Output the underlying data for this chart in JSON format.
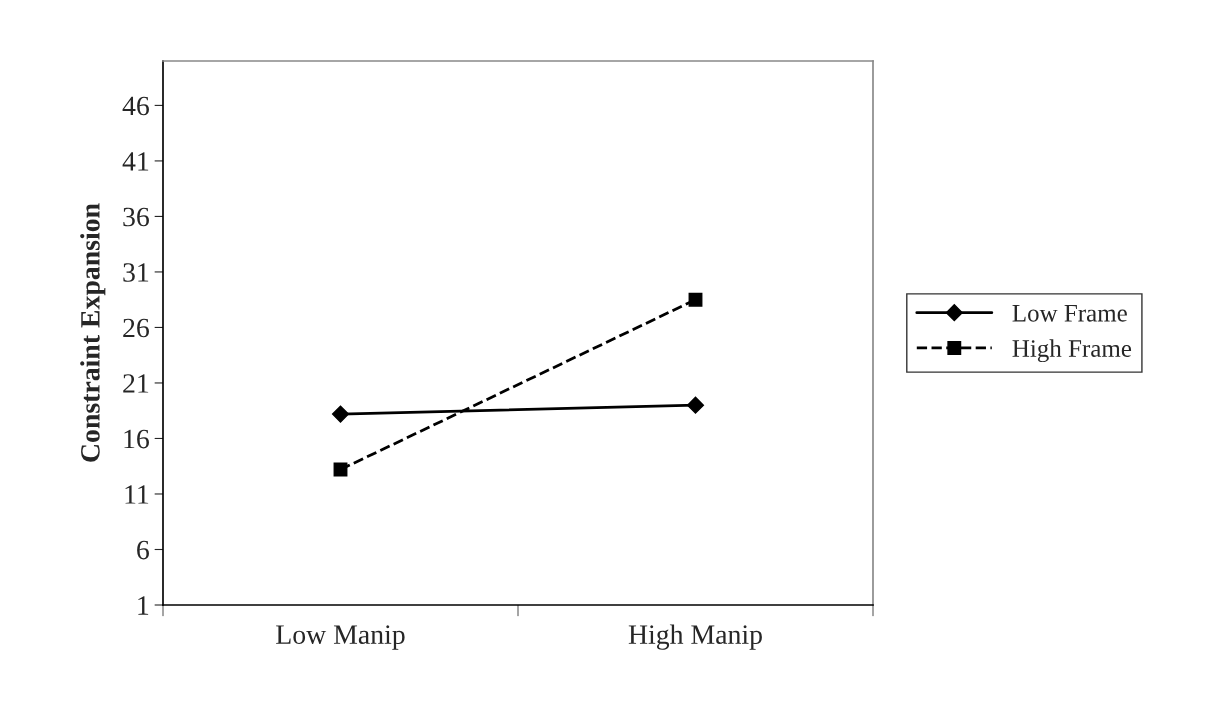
{
  "chart_data": {
    "type": "line",
    "ylabel": "Constraint Expansion",
    "categories": [
      "Low Manip",
      "High Manip"
    ],
    "series": [
      {
        "name": "Low Frame",
        "color": "#000000",
        "values": [
          18.2,
          19.0
        ],
        "marker": "diamond",
        "line_style": "solid"
      },
      {
        "name": "High Frame",
        "color": "#000000",
        "values": [
          13.2,
          28.5
        ],
        "marker": "square",
        "line_style": "dashed"
      }
    ],
    "ylim": [
      1,
      50
    ],
    "yticks": [
      1,
      6,
      11,
      16,
      21,
      26,
      31,
      36,
      41,
      46
    ],
    "grid": false,
    "legend": "right"
  }
}
